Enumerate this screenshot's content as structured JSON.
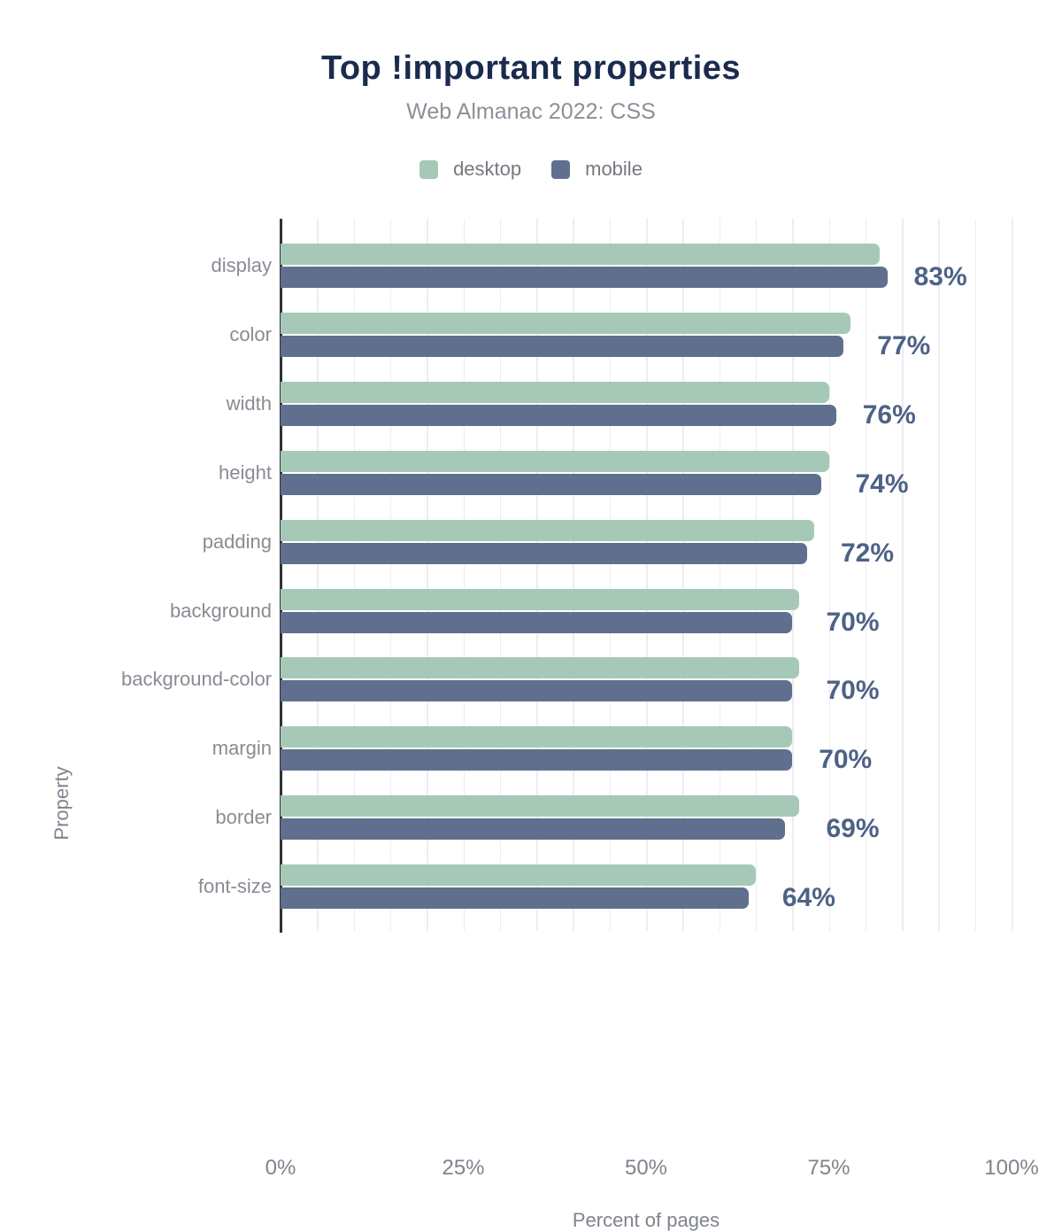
{
  "header": {
    "title": "Top !important properties",
    "subtitle": "Web Almanac 2022: CSS"
  },
  "legend": {
    "items": [
      {
        "label": "desktop",
        "color": "#a6c9b7"
      },
      {
        "label": "mobile",
        "color": "#5f6f8d"
      }
    ]
  },
  "colors": {
    "desktop_bar": "#a6c9b7",
    "mobile_bar": "#5f6f8d",
    "title_text": "#1b2b4f",
    "value_label_text": "#4d6286",
    "axis_line": "#303239",
    "gridline": "#ededf0"
  },
  "chart_data": {
    "type": "bar",
    "orientation": "horizontal",
    "title": "Top !important properties",
    "subtitle": "Web Almanac 2022: CSS",
    "xlabel": "Percent of pages",
    "ylabel": "Property",
    "xlim": [
      0,
      100
    ],
    "xticks": [
      "0%",
      "25%",
      "50%",
      "75%",
      "100%"
    ],
    "grid": "vertical minor gridlines every 5%",
    "legend_position": "top",
    "categories": [
      "display",
      "color",
      "width",
      "height",
      "padding",
      "background",
      "background-color",
      "margin",
      "border",
      "font-size"
    ],
    "series": [
      {
        "name": "desktop",
        "color": "#a6c9b7",
        "values": [
          82,
          78,
          75,
          75,
          73,
          71,
          71,
          70,
          71,
          65
        ]
      },
      {
        "name": "mobile",
        "color": "#5f6f8d",
        "values": [
          83,
          77,
          76,
          74,
          72,
          70,
          70,
          70,
          69,
          64
        ]
      }
    ],
    "value_labels": [
      "83%",
      "77%",
      "76%",
      "74%",
      "72%",
      "70%",
      "70%",
      "70%",
      "69%",
      "64%"
    ]
  }
}
